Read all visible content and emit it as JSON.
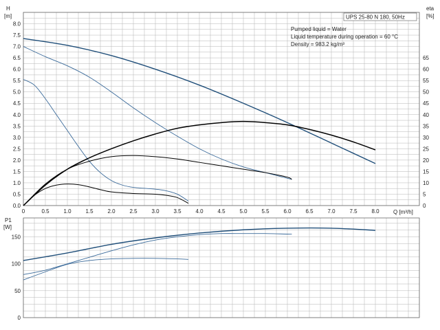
{
  "chart_data": [
    {
      "type": "line",
      "id": "head-efficiency",
      "ylabel": "H",
      "yunit": "[m]",
      "y2label": "eta",
      "y2unit": "[%]",
      "xlabel": "Q [m³/h]",
      "xlim": [
        0,
        9
      ],
      "xticks": [
        0,
        0.5,
        1.0,
        1.5,
        2.0,
        2.5,
        3.0,
        3.5,
        4.0,
        4.5,
        5.0,
        5.5,
        6.0,
        6.5,
        7.0,
        7.5,
        8.0
      ],
      "xtick_labels": [
        "0",
        "0.5",
        "1.0",
        "1.5",
        "2.0",
        "2.5",
        "3.0",
        "3.5",
        "4.0",
        "4.5",
        "5.0",
        "5.5",
        "6.0",
        "6.5",
        "7.0",
        "7.5",
        "8.0"
      ],
      "ylim": [
        0,
        8.5
      ],
      "yticks": [
        0,
        0.5,
        1.0,
        1.5,
        2.0,
        2.5,
        3.0,
        3.5,
        4.0,
        4.5,
        5.0,
        5.5,
        6.0,
        6.5,
        7.0,
        7.5,
        8.0
      ],
      "ytick_labels": [
        "0.0",
        "0.5",
        "1.0",
        "1.5",
        "2.0",
        "2.5",
        "3.0",
        "3.5",
        "4.0",
        "4.5",
        "5.0",
        "5.5",
        "6.0",
        "6.5",
        "7.0",
        "7.5",
        "8.0"
      ],
      "y2lim": [
        0,
        85
      ],
      "y2ticks": [
        0,
        5,
        10,
        15,
        20,
        25,
        30,
        35,
        40,
        45,
        50,
        55,
        60,
        65
      ],
      "y2tick_labels": [
        "0",
        "5",
        "10",
        "15",
        "20",
        "25",
        "30",
        "35",
        "40",
        "45",
        "50",
        "55",
        "60",
        "65"
      ],
      "grid": true,
      "annotation": {
        "title_box": "UPS 25-80 N 180, 50Hz",
        "lines": [
          "Pumped liquid = Water",
          "Liquid temperature during operation = 60 °C",
          "Density = 983.2 kg/m³"
        ]
      },
      "series": [
        {
          "axis": "H",
          "color": "#1f4e79",
          "width": 1.4,
          "x": [
            0,
            1,
            2,
            3,
            4,
            5,
            6,
            7,
            8
          ],
          "y": [
            7.35,
            7.05,
            6.6,
            6.0,
            5.3,
            4.5,
            3.65,
            2.75,
            1.85
          ]
        },
        {
          "axis": "H",
          "color": "#3a6a9a",
          "width": 0.9,
          "x": [
            0,
            0.5,
            1,
            1.5,
            2,
            2.5,
            3,
            3.5,
            4,
            4.5,
            5,
            5.5,
            6,
            6.1
          ],
          "y": [
            7.0,
            6.55,
            6.15,
            5.65,
            5.0,
            4.3,
            3.65,
            3.05,
            2.5,
            2.05,
            1.7,
            1.45,
            1.2,
            1.15
          ]
        },
        {
          "axis": "H",
          "color": "#3a6a9a",
          "width": 0.9,
          "x": [
            0,
            0.25,
            0.5,
            0.75,
            1,
            1.25,
            1.5,
            1.75,
            2,
            2.25,
            2.5,
            3,
            3.25,
            3.5,
            3.75
          ],
          "y": [
            5.55,
            5.3,
            4.7,
            4.0,
            3.3,
            2.6,
            1.95,
            1.45,
            1.1,
            0.9,
            0.8,
            0.72,
            0.65,
            0.5,
            0.2
          ]
        },
        {
          "axis": "eta",
          "color": "#000000",
          "width": 1.5,
          "x": [
            0,
            0.5,
            1,
            1.5,
            2,
            2.5,
            3,
            3.5,
            4,
            4.5,
            5,
            5.5,
            6,
            6.5,
            7,
            7.5,
            8
          ],
          "y": [
            0,
            9,
            16,
            21,
            25,
            28.5,
            31.5,
            34,
            35.5,
            36.5,
            37,
            36.5,
            35.5,
            33.5,
            31,
            28,
            24.5
          ]
        },
        {
          "axis": "eta",
          "color": "#000000",
          "width": 1.0,
          "x": [
            0,
            0.5,
            1,
            1.5,
            2,
            2.5,
            3,
            3.5,
            4,
            4.5,
            5,
            5.5,
            6,
            6.1
          ],
          "y": [
            0,
            9.5,
            16,
            19.5,
            21.5,
            22,
            21.5,
            20.5,
            19,
            17.5,
            16,
            14.5,
            12.5,
            11.5
          ]
        },
        {
          "axis": "eta",
          "color": "#000000",
          "width": 1.0,
          "x": [
            0,
            0.25,
            0.5,
            0.75,
            1,
            1.25,
            1.5,
            1.75,
            2,
            2.5,
            3,
            3.25,
            3.5,
            3.75
          ],
          "y": [
            0,
            4.5,
            7.5,
            9,
            9.5,
            9.2,
            8.2,
            7.0,
            6.0,
            5.3,
            5.0,
            4.5,
            3.5,
            1.0
          ]
        }
      ]
    },
    {
      "type": "line",
      "id": "power",
      "ylabel": "P1",
      "yunit": "[W]",
      "xlim": [
        0,
        9
      ],
      "ylim": [
        0,
        185
      ],
      "yticks": [
        0,
        50,
        100,
        150
      ],
      "ytick_labels": [
        "0",
        "50",
        "100",
        "150"
      ],
      "grid": true,
      "series": [
        {
          "color": "#1f4e79",
          "width": 1.4,
          "x": [
            0,
            1,
            2,
            3,
            4,
            5,
            6,
            7,
            8
          ],
          "y": [
            106,
            120,
            136,
            148,
            157,
            163,
            166,
            166,
            162
          ]
        },
        {
          "color": "#3a6a9a",
          "width": 0.9,
          "x": [
            0,
            0.5,
            1,
            1.5,
            2,
            2.5,
            3,
            3.5,
            4,
            4.5,
            5,
            5.5,
            6,
            6.1
          ],
          "y": [
            80,
            88,
            100,
            112,
            124,
            135,
            144,
            150,
            154,
            156,
            156,
            156,
            155,
            155
          ]
        },
        {
          "color": "#3a6a9a",
          "width": 0.9,
          "x": [
            0,
            0.5,
            1,
            1.5,
            2,
            2.5,
            3,
            3.5,
            3.75
          ],
          "y": [
            70,
            85,
            99,
            106,
            109,
            110,
            110,
            109,
            108
          ]
        }
      ]
    }
  ]
}
